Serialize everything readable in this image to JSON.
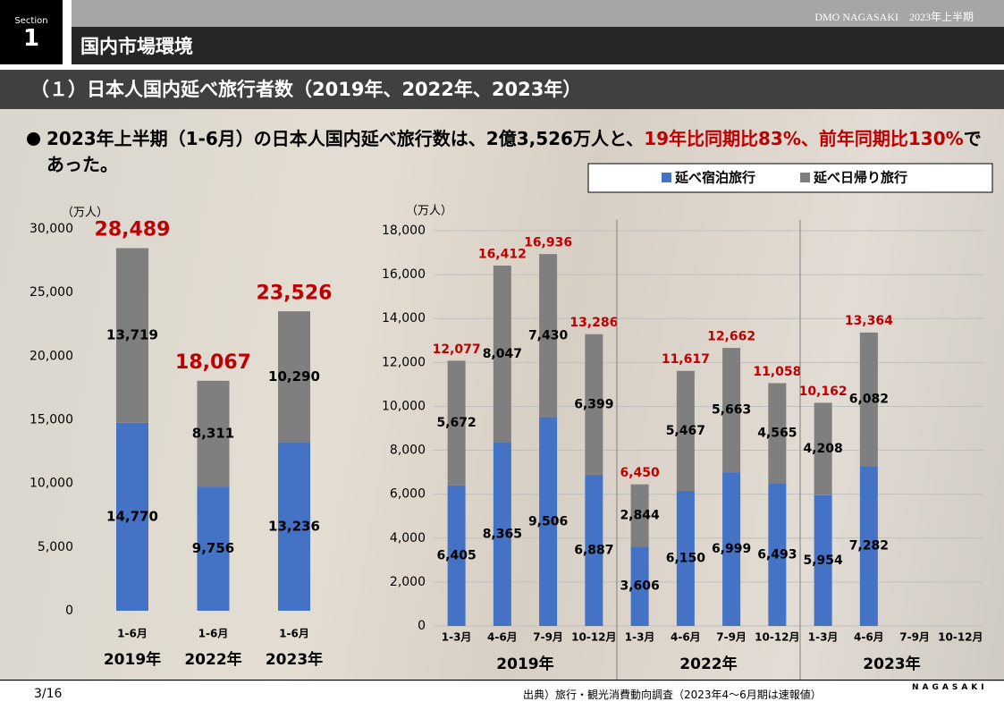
{
  "header": {
    "section_label": "Section",
    "section_number": "1",
    "brand": "DMO NAGASAKI　2023年上半期",
    "title": "国内市場環境",
    "subtitle": "（１）日本人国内延べ旅行者数（2019年、2022年、2023年）"
  },
  "summary": {
    "text_1": "2023年上半期（1-6月）の日本人国内延べ旅行数は、2億3,526万人と、",
    "highlight": "19年比同期比83%、前年同期比130%",
    "text_2": "であった。"
  },
  "chart_data": [
    {
      "type": "bar",
      "stacked": true,
      "y_label": "（万人）",
      "categories": [
        "1-6月",
        "1-6月",
        "1-6月"
      ],
      "groups": [
        "2019年",
        "2022年",
        "2023年"
      ],
      "series": [
        {
          "name": "延べ宿泊旅行",
          "color": "#4472c4",
          "values": [
            14770,
            9756,
            13236
          ],
          "value_labels": [
            "14,770",
            "9,756",
            "13,236"
          ]
        },
        {
          "name": "延べ日帰り旅行",
          "color": "#7f7f7f",
          "values": [
            13719,
            8311,
            10290
          ],
          "value_labels": [
            "13,719",
            "8,311",
            "10,290"
          ]
        }
      ],
      "totals": [
        28489,
        18067,
        23526
      ],
      "totals_labels": [
        "28,489",
        "18,067",
        "23,526"
      ],
      "totals_color": "#c00000",
      "ylim": [
        0,
        30000
      ],
      "yticks": [
        0,
        {
          "value": 5000,
          "label": "5,000"
        },
        {
          "value": 10000,
          "label": "10,000"
        },
        {
          "value": 15000,
          "label": "15,000"
        },
        {
          "value": 20000,
          "label": "20,000"
        },
        {
          "value": 25000,
          "label": "25,000"
        },
        {
          "value": 30000,
          "label": "30,000"
        }
      ],
      "grid": false
    },
    {
      "type": "bar",
      "stacked": true,
      "y_label": "（万人）",
      "categories": [
        "1-3月",
        "4-6月",
        "7-9月",
        "10-12月",
        "1-3月",
        "4-6月",
        "7-9月",
        "10-12月",
        "1-3月",
        "4-6月",
        "7-9月",
        "10-12月"
      ],
      "groups": [
        "2019年",
        "2022年",
        "2023年"
      ],
      "series": [
        {
          "name": "延べ宿泊旅行",
          "color": "#4472c4",
          "values": [
            6405,
            8365,
            9506,
            6887,
            3606,
            6150,
            6999,
            6493,
            5954,
            7282,
            null,
            null
          ],
          "value_labels": [
            "6,405",
            "8,365",
            "9,506",
            "6,887",
            "3,606",
            "6,150",
            "6,999",
            "6,493",
            "5,954",
            "7,282",
            null,
            null
          ]
        },
        {
          "name": "延べ日帰り旅行",
          "color": "#7f7f7f",
          "values": [
            5672,
            8047,
            7430,
            6399,
            2844,
            5467,
            5663,
            4565,
            4208,
            6082,
            null,
            null
          ],
          "value_labels": [
            "5,672",
            "8,047",
            "7,430",
            "6,399",
            "2,844",
            "5,467",
            "5,663",
            "4,565",
            "4,208",
            "6,082",
            null,
            null
          ]
        }
      ],
      "totals": [
        12077,
        16412,
        16936,
        13286,
        6450,
        11617,
        12662,
        11058,
        10162,
        13364,
        null,
        null
      ],
      "totals_labels": [
        "12,077",
        "16,412",
        "16,936",
        "13,286",
        "6,450",
        "11,617",
        "12,662",
        "11,058",
        "10,162",
        "13,364",
        null,
        null
      ],
      "totals_color": "#c00000",
      "ylim": [
        0,
        18000
      ],
      "yticks": [
        0,
        {
          "value": 2000,
          "label": "2,000"
        },
        {
          "value": 4000,
          "label": "4,000"
        },
        {
          "value": 6000,
          "label": "6,000"
        },
        {
          "value": 8000,
          "label": "8,000"
        },
        {
          "value": 10000,
          "label": "10,000"
        },
        {
          "value": 12000,
          "label": "12,000"
        },
        {
          "value": 14000,
          "label": "14,000"
        },
        {
          "value": 16000,
          "label": "16,000"
        },
        {
          "value": 18000,
          "label": "18,000"
        }
      ],
      "grid": true,
      "legend": "top-right"
    }
  ],
  "footer": {
    "page": "3/16",
    "source": "出典）旅行・観光消費動向調査（2023年4～6月期は速報値）",
    "logo": "NAGASAKI"
  }
}
